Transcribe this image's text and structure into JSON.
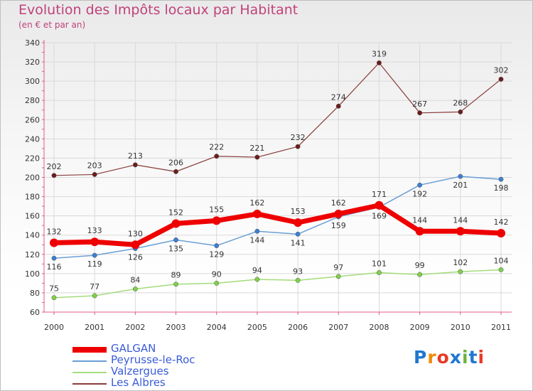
{
  "header": {
    "title": "Evolution des Impôts locaux par Habitant",
    "subtitle": "(en € et par an)"
  },
  "logo": {
    "text": "Proxiti",
    "colors": [
      "#1f78d1",
      "#f08a00",
      "#e8392a",
      "#1f78d1",
      "#6cb33e",
      "#1f78d1",
      "#e8392a"
    ]
  },
  "colors": {
    "title": "#c0427a",
    "legend_text": "#3a5bd9"
  },
  "chart_data": {
    "type": "line",
    "title": "Evolution des Impôts locaux par Habitant",
    "subtitle": "(en € et par an)",
    "xlabel": "",
    "ylabel": "",
    "x": [
      2000,
      2001,
      2002,
      2003,
      2004,
      2005,
      2006,
      2007,
      2008,
      2009,
      2010,
      2011
    ],
    "x_tick_labels": [
      "2000",
      "2001",
      "2002",
      "2003",
      "2004",
      "2005",
      "2006",
      "2007",
      "2008",
      "2009",
      "2010",
      "2011"
    ],
    "ylim": [
      60,
      340
    ],
    "y_ticks": [
      60,
      80,
      100,
      120,
      140,
      160,
      180,
      200,
      220,
      240,
      260,
      280,
      300,
      320,
      340
    ],
    "grid": true,
    "legend_position": "bottom-left",
    "series": [
      {
        "name": "GALGAN",
        "color": "#ee0000",
        "marker": "#ee0000",
        "width": 7,
        "values": [
          132,
          133,
          130,
          152,
          155,
          162,
          153,
          162,
          171,
          144,
          144,
          142
        ]
      },
      {
        "name": "Peyrusse-le-Roc",
        "color": "#6a9fd6",
        "marker": "#3c7fd0",
        "width": 1.5,
        "values": [
          116,
          119,
          126,
          135,
          129,
          144,
          141,
          159,
          169,
          192,
          201,
          198
        ]
      },
      {
        "name": "Valzergues",
        "color": "#a3dc7a",
        "marker": "#7fd04a",
        "width": 1.5,
        "values": [
          75,
          77,
          84,
          89,
          90,
          94,
          93,
          97,
          101,
          99,
          102,
          104
        ]
      },
      {
        "name": "Les Albres",
        "color": "#8a3b3b",
        "marker": "#6b1c1c",
        "width": 1.2,
        "values": [
          202,
          203,
          213,
          206,
          222,
          221,
          232,
          274,
          319,
          267,
          268,
          302
        ]
      }
    ],
    "data_labels": [
      [
        "132",
        "133",
        "130",
        "152",
        "155",
        "162",
        "153",
        "162",
        "171",
        "144",
        "144",
        "142"
      ],
      [
        "116",
        "119",
        "126",
        "135",
        "129",
        "144",
        "141",
        "159",
        "169",
        "192",
        "201",
        "198"
      ],
      [
        "75",
        "77",
        "84",
        "89",
        "90",
        "94",
        "93",
        "97",
        "101",
        "99",
        "102",
        "104"
      ],
      [
        "202",
        "203",
        "213",
        "206",
        "222",
        "221",
        "232",
        "274",
        "319",
        "267",
        "268",
        "302"
      ]
    ]
  }
}
